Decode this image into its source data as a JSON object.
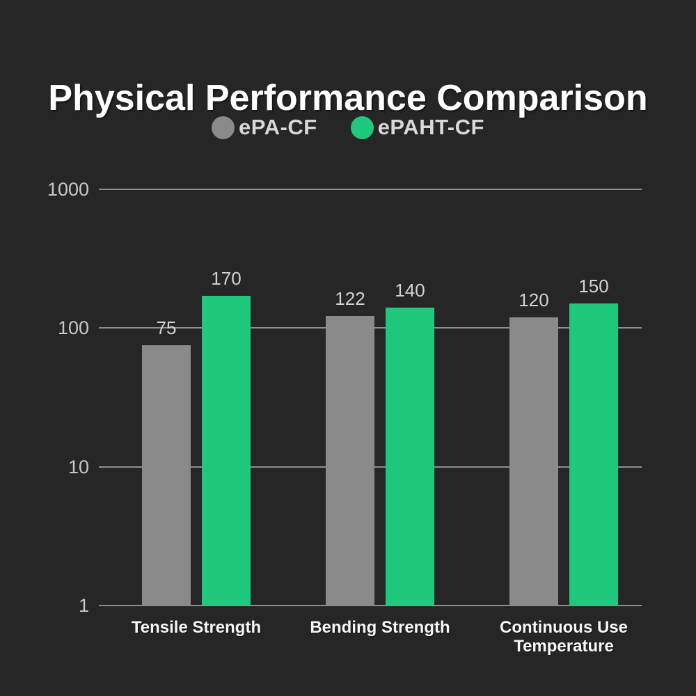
{
  "title": "Physical Performance Comparison",
  "legend": {
    "items": [
      {
        "label": "ePA-CF",
        "color": "#8a8a8a"
      },
      {
        "label": "ePAHT-CF",
        "color": "#1ec97e"
      }
    ]
  },
  "chart_data": {
    "type": "bar",
    "title": "Physical Performance Comparison",
    "categories": [
      "Tensile Strength",
      "Bending Strength",
      "Continuous Use Temperature"
    ],
    "series": [
      {
        "name": "ePA-CF",
        "color": "#8a8a8a",
        "values": [
          75,
          122,
          120
        ]
      },
      {
        "name": "ePAHT-CF",
        "color": "#1ec97e",
        "values": [
          170,
          140,
          150
        ]
      }
    ],
    "xlabel": "",
    "ylabel": "",
    "yscale": "log",
    "ylim": [
      1,
      1000
    ],
    "yticks": [
      1000,
      100,
      10,
      1
    ],
    "grid": "horizontal",
    "legend_position": "top-center",
    "background_color": "#262626"
  }
}
